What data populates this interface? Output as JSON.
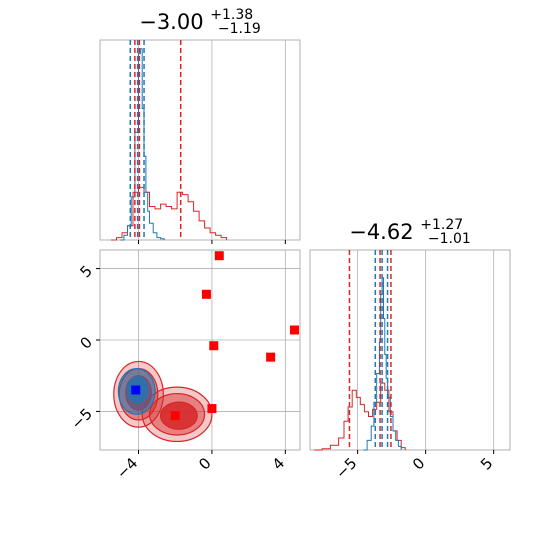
{
  "chart_data": {
    "type": "corner",
    "titles": {
      "panel_1": {
        "value": "−3.00",
        "plus": "+1.38",
        "minus": "−1.19"
      },
      "panel_2": {
        "value": "−4.62",
        "plus": "+1.27",
        "minus": "−1.01"
      }
    },
    "axes": {
      "x1": {
        "lim": [
          -6.1,
          4.8
        ],
        "ticks": [
          -4,
          0,
          4
        ],
        "tick_labels": [
          "−4",
          "0",
          "4"
        ]
      },
      "x2": {
        "lim": [
          -8.5,
          6.2
        ],
        "ticks": [
          -5,
          0,
          5
        ],
        "tick_labels": [
          "−5",
          "0",
          "5"
        ]
      },
      "y_joint": {
        "lim": [
          -7.7,
          6.3
        ],
        "ticks": [
          5,
          0,
          -5
        ],
        "tick_labels": [
          "5",
          "0",
          "−5"
        ]
      }
    },
    "colors": {
      "red": "#d62728",
      "blue": "#1f77b4",
      "marker_red": "#ff0000",
      "marker_blue": "#0000ff"
    },
    "grid": true,
    "marginal_1": {
      "quantile_lines": {
        "red": [
          -4.2,
          -1.7,
          -3.95
        ],
        "blue": [
          -4.45,
          -4.05,
          -3.7
        ]
      },
      "red_hist_x": [
        -5.5,
        -5.2,
        -4.9,
        -4.6,
        -4.3,
        -4.0,
        -3.7,
        -3.4,
        -3.1,
        -2.8,
        -2.5,
        -2.2,
        -1.9,
        -1.6,
        -1.3,
        -1.0,
        -0.7,
        -0.4,
        -0.1,
        0.2,
        0.5,
        0.8
      ],
      "red_hist_y": [
        0,
        0.01,
        0.03,
        0.06,
        0.2,
        0.22,
        0.2,
        0.14,
        0.13,
        0.15,
        0.14,
        0.13,
        0.2,
        0.19,
        0.16,
        0.12,
        0.08,
        0.05,
        0.03,
        0.02,
        0.01,
        0
      ],
      "blue_hist_x": [
        -5.0,
        -4.8,
        -4.6,
        -4.4,
        -4.2,
        -4.0,
        -3.9,
        -3.8,
        -3.7,
        -3.6,
        -3.5,
        -3.4,
        -3.2,
        -3.0,
        -2.8,
        -2.6
      ],
      "blue_hist_y": [
        0,
        0.02,
        0.06,
        0.18,
        0.45,
        0.78,
        0.8,
        0.55,
        0.35,
        0.2,
        0.12,
        0.07,
        0.03,
        0.01,
        0.005,
        0
      ]
    },
    "marginal_2": {
      "quantile_lines": {
        "red": [
          -5.6,
          -3.35,
          -2.55
        ],
        "blue": [
          -3.7,
          -3.2,
          -2.8
        ]
      },
      "red_hist_x": [
        -8.2,
        -7.6,
        -7.0,
        -6.4,
        -6.0,
        -5.7,
        -5.4,
        -5.1,
        -4.8,
        -4.5,
        -4.2,
        -3.9,
        -3.6,
        -3.3,
        -3.0,
        -2.7,
        -2.4,
        -2.1,
        -1.8,
        -1.5
      ],
      "red_hist_y": [
        0,
        0.005,
        0.02,
        0.05,
        0.12,
        0.18,
        0.25,
        0.22,
        0.19,
        0.16,
        0.14,
        0.17,
        0.2,
        0.28,
        0.25,
        0.16,
        0.08,
        0.04,
        0.01,
        0
      ],
      "blue_hist_x": [
        -4.6,
        -4.3,
        -4.0,
        -3.8,
        -3.6,
        -3.4,
        -3.3,
        -3.2,
        -3.1,
        -3.0,
        -2.9,
        -2.8,
        -2.6,
        -2.4,
        -2.2,
        -2.0,
        -1.8
      ],
      "blue_hist_y": [
        0,
        0.04,
        0.1,
        0.2,
        0.32,
        0.45,
        0.65,
        0.72,
        0.55,
        0.4,
        0.3,
        0.22,
        0.14,
        0.08,
        0.04,
        0.015,
        0
      ]
    },
    "joint": {
      "red_contours": [
        {
          "level": "outer",
          "cx": [
            -4.0,
            -1.9
          ],
          "cy": [
            -3.8,
            -5.2
          ],
          "rx": [
            1.35,
            1.9
          ],
          "ry": [
            2.3,
            1.9
          ]
        },
        {
          "level": "mid",
          "cx": [
            -4.0,
            -1.9
          ],
          "cy": [
            -3.8,
            -5.2
          ],
          "rx": [
            1.05,
            1.5
          ],
          "ry": [
            1.8,
            1.45
          ]
        },
        {
          "level": "inner",
          "cx": [
            -4.0,
            -1.8
          ],
          "cy": [
            -3.7,
            -5.3
          ],
          "rx": [
            0.7,
            1.0
          ],
          "ry": [
            1.2,
            0.95
          ]
        }
      ],
      "blue_contours": [
        {
          "level": "outer",
          "cx": -4.1,
          "cy": -3.6,
          "rx": 1.0,
          "ry": 1.6
        },
        {
          "level": "inner",
          "cx": -4.05,
          "cy": -3.5,
          "rx": 0.55,
          "ry": 0.9
        }
      ],
      "red_markers": [
        {
          "x": 0.4,
          "y": 5.9
        },
        {
          "x": -0.3,
          "y": 3.2
        },
        {
          "x": 4.5,
          "y": 0.7
        },
        {
          "x": 0.1,
          "y": -0.4
        },
        {
          "x": 3.2,
          "y": -1.2
        },
        {
          "x": 0.0,
          "y": -4.8
        },
        {
          "x": -2.0,
          "y": -5.3
        }
      ],
      "blue_marker": {
        "x": -4.15,
        "y": -3.5
      }
    }
  }
}
